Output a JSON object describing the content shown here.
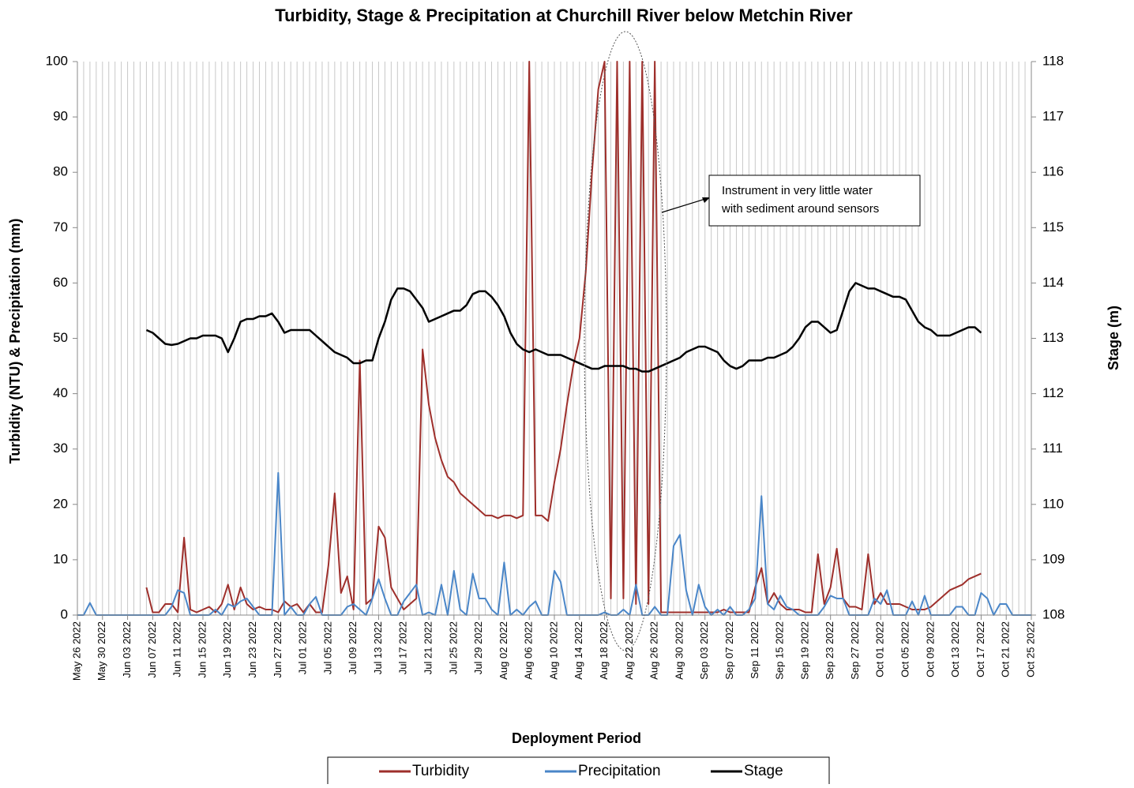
{
  "chart_data": {
    "type": "line",
    "title": "Turbidity, Stage & Precipitation at Churchill River below Metchin River",
    "xlabel": "Deployment Period",
    "ylabel": "Turbidity (NTU) & Precipitation (mm)",
    "y2label": "Stage (m)",
    "annotation": [
      "Instrument in very little water",
      "with sediment around sensors"
    ],
    "legend": "bottom",
    "grid": true,
    "xlim": [
      "2022-05-26",
      "2022-10-25"
    ],
    "ylim": [
      0,
      100
    ],
    "yticks": [
      0,
      10,
      20,
      30,
      40,
      50,
      60,
      70,
      80,
      90,
      100
    ],
    "y2lim": [
      108,
      118
    ],
    "y2ticks": [
      108,
      109,
      110,
      111,
      112,
      113,
      114,
      115,
      116,
      117,
      118
    ],
    "xticks": [
      {
        "value": "2022-05-26",
        "label": "May 26 2022"
      },
      {
        "value": "2022-05-30",
        "label": "May 30 2022"
      },
      {
        "value": "2022-06-03",
        "label": "Jun 03 2022"
      },
      {
        "value": "2022-06-07",
        "label": "Jun 07 2022"
      },
      {
        "value": "2022-06-11",
        "label": "Jun 11 2022"
      },
      {
        "value": "2022-06-15",
        "label": "Jun 15 2022"
      },
      {
        "value": "2022-06-19",
        "label": "Jun 19 2022"
      },
      {
        "value": "2022-06-23",
        "label": "Jun 23 2022"
      },
      {
        "value": "2022-06-27",
        "label": "Jun 27 2022"
      },
      {
        "value": "2022-07-01",
        "label": "Jul 01 2022"
      },
      {
        "value": "2022-07-05",
        "label": "Jul 05 2022"
      },
      {
        "value": "2022-07-09",
        "label": "Jul 09 2022"
      },
      {
        "value": "2022-07-13",
        "label": "Jul 13 2022"
      },
      {
        "value": "2022-07-17",
        "label": "Jul 17 2022"
      },
      {
        "value": "2022-07-21",
        "label": "Jul 21 2022"
      },
      {
        "value": "2022-07-25",
        "label": "Jul 25 2022"
      },
      {
        "value": "2022-07-29",
        "label": "Jul 29 2022"
      },
      {
        "value": "2022-08-02",
        "label": "Aug 02 2022"
      },
      {
        "value": "2022-08-06",
        "label": "Aug 06 2022"
      },
      {
        "value": "2022-08-10",
        "label": "Aug 10 2022"
      },
      {
        "value": "2022-08-14",
        "label": "Aug 14 2022"
      },
      {
        "value": "2022-08-18",
        "label": "Aug 18 2022"
      },
      {
        "value": "2022-08-22",
        "label": "Aug 22 2022"
      },
      {
        "value": "2022-08-26",
        "label": "Aug 26 2022"
      },
      {
        "value": "2022-08-30",
        "label": "Aug 30 2022"
      },
      {
        "value": "2022-09-03",
        "label": "Sep 03 2022"
      },
      {
        "value": "2022-09-07",
        "label": "Sep 07 2022"
      },
      {
        "value": "2022-09-11",
        "label": "Sep 11 2022"
      },
      {
        "value": "2022-09-15",
        "label": "Sep 15 2022"
      },
      {
        "value": "2022-09-19",
        "label": "Sep 19 2022"
      },
      {
        "value": "2022-09-23",
        "label": "Sep 23 2022"
      },
      {
        "value": "2022-09-27",
        "label": "Sep 27 2022"
      },
      {
        "value": "2022-10-01",
        "label": "Oct 01 2022"
      },
      {
        "value": "2022-10-05",
        "label": "Oct 05 2022"
      },
      {
        "value": "2022-10-09",
        "label": "Oct 09 2022"
      },
      {
        "value": "2022-10-13",
        "label": "Oct 13 2022"
      },
      {
        "value": "2022-10-17",
        "label": "Oct 17 2022"
      },
      {
        "value": "2022-10-21",
        "label": "Oct 21 2022"
      },
      {
        "value": "2022-10-25",
        "label": "Oct 25 2022"
      }
    ],
    "x": [
      "2022-05-26",
      "2022-05-27",
      "2022-05-28",
      "2022-05-29",
      "2022-05-30",
      "2022-05-31",
      "2022-06-01",
      "2022-06-02",
      "2022-06-03",
      "2022-06-04",
      "2022-06-05",
      "2022-06-06",
      "2022-06-07",
      "2022-06-08",
      "2022-06-09",
      "2022-06-10",
      "2022-06-11",
      "2022-06-12",
      "2022-06-13",
      "2022-06-14",
      "2022-06-15",
      "2022-06-16",
      "2022-06-17",
      "2022-06-18",
      "2022-06-19",
      "2022-06-20",
      "2022-06-21",
      "2022-06-22",
      "2022-06-23",
      "2022-06-24",
      "2022-06-25",
      "2022-06-26",
      "2022-06-27",
      "2022-06-28",
      "2022-06-29",
      "2022-06-30",
      "2022-07-01",
      "2022-07-02",
      "2022-07-03",
      "2022-07-04",
      "2022-07-05",
      "2022-07-06",
      "2022-07-07",
      "2022-07-08",
      "2022-07-09",
      "2022-07-10",
      "2022-07-11",
      "2022-07-12",
      "2022-07-13",
      "2022-07-14",
      "2022-07-15",
      "2022-07-16",
      "2022-07-17",
      "2022-07-18",
      "2022-07-19",
      "2022-07-20",
      "2022-07-21",
      "2022-07-22",
      "2022-07-23",
      "2022-07-24",
      "2022-07-25",
      "2022-07-26",
      "2022-07-27",
      "2022-07-28",
      "2022-07-29",
      "2022-07-30",
      "2022-07-31",
      "2022-08-01",
      "2022-08-02",
      "2022-08-03",
      "2022-08-04",
      "2022-08-05",
      "2022-08-06",
      "2022-08-07",
      "2022-08-08",
      "2022-08-09",
      "2022-08-10",
      "2022-08-11",
      "2022-08-12",
      "2022-08-13",
      "2022-08-14",
      "2022-08-15",
      "2022-08-16",
      "2022-08-17",
      "2022-08-18",
      "2022-08-19",
      "2022-08-20",
      "2022-08-21",
      "2022-08-22",
      "2022-08-23",
      "2022-08-24",
      "2022-08-25",
      "2022-08-26",
      "2022-08-27",
      "2022-08-28",
      "2022-08-29",
      "2022-08-30",
      "2022-08-31",
      "2022-09-01",
      "2022-09-02",
      "2022-09-03",
      "2022-09-04",
      "2022-09-05",
      "2022-09-06",
      "2022-09-07",
      "2022-09-08",
      "2022-09-09",
      "2022-09-10",
      "2022-09-11",
      "2022-09-12",
      "2022-09-13",
      "2022-09-14",
      "2022-09-15",
      "2022-09-16",
      "2022-09-17",
      "2022-09-18",
      "2022-09-19",
      "2022-09-20",
      "2022-09-21",
      "2022-09-22",
      "2022-09-23",
      "2022-09-24",
      "2022-09-25",
      "2022-09-26",
      "2022-09-27",
      "2022-09-28",
      "2022-09-29",
      "2022-09-30",
      "2022-10-01",
      "2022-10-02",
      "2022-10-03",
      "2022-10-04",
      "2022-10-05",
      "2022-10-06",
      "2022-10-07",
      "2022-10-08",
      "2022-10-09",
      "2022-10-10",
      "2022-10-11",
      "2022-10-12",
      "2022-10-13",
      "2022-10-14",
      "2022-10-15",
      "2022-10-16",
      "2022-10-17",
      "2022-10-18",
      "2022-10-19",
      "2022-10-20",
      "2022-10-21",
      "2022-10-22",
      "2022-10-23",
      "2022-10-24",
      "2022-10-25"
    ],
    "series": [
      {
        "name": "Turbidity",
        "color": "#9e2f2b",
        "values": [
          null,
          null,
          null,
          null,
          null,
          null,
          null,
          null,
          null,
          null,
          null,
          5,
          0.5,
          0.5,
          2,
          2,
          0.5,
          14,
          1,
          0.5,
          1,
          1.5,
          0.5,
          2,
          5.5,
          1,
          5,
          2,
          1,
          1.5,
          1,
          1,
          0.5,
          2.5,
          1.5,
          2,
          0.5,
          2,
          0.5,
          0.5,
          9,
          22,
          4,
          7,
          1,
          46,
          2,
          3,
          16,
          14,
          5,
          3,
          1,
          2,
          3,
          48,
          38,
          32,
          28,
          25,
          24,
          22,
          21,
          20,
          19,
          18,
          18,
          17.5,
          18,
          18,
          17.5,
          18,
          100,
          18,
          18,
          17,
          24,
          30,
          38,
          45,
          50,
          62,
          80,
          95,
          100,
          3,
          100,
          3,
          100,
          2,
          100,
          2,
          100,
          0.5,
          0.5,
          0.5,
          0.5,
          0.5,
          0.5,
          0.5,
          0.5,
          0.5,
          0.5,
          1,
          0.5,
          0.5,
          0.5,
          0.5,
          5,
          8.5,
          2,
          4,
          2,
          1,
          1,
          1,
          0.5,
          0.5,
          11,
          2,
          5,
          12,
          3,
          1.5,
          1.5,
          1,
          11,
          2,
          4,
          2,
          2,
          2,
          1.5,
          1,
          1,
          1,
          1.5,
          2.5,
          3.5,
          4.5,
          5,
          5.5,
          6.5,
          7,
          7.5,
          null,
          null,
          null,
          null,
          null,
          null,
          null,
          null
        ]
      },
      {
        "name": "Precipitation",
        "color": "#4a86c8",
        "values": [
          0,
          0,
          2.2,
          0,
          0,
          0,
          0,
          0,
          0,
          0,
          0,
          0,
          0,
          0,
          0,
          1.5,
          4.5,
          4,
          0,
          0,
          0,
          0,
          1,
          0,
          2,
          1.5,
          2.5,
          3,
          1.5,
          0,
          0,
          0,
          25.7,
          0,
          1.5,
          0,
          0,
          2,
          3.3,
          0,
          0,
          0,
          0,
          1.5,
          2,
          1,
          0,
          3,
          6.5,
          3,
          0,
          0,
          2.5,
          4,
          5.5,
          0,
          0.5,
          0,
          5.5,
          0,
          8,
          1,
          0,
          7.5,
          3,
          3,
          1,
          0,
          9.5,
          0,
          1,
          0,
          1.5,
          2.5,
          0,
          0,
          8,
          6,
          0,
          0,
          0,
          0,
          0,
          0,
          0.5,
          0,
          0,
          1,
          0,
          5.5,
          0,
          0,
          1.5,
          0,
          0,
          12.5,
          14.5,
          4.5,
          0,
          5.5,
          1.5,
          0,
          1,
          0,
          1.5,
          0,
          0,
          1,
          3,
          21.5,
          2,
          1,
          3.5,
          1.5,
          1,
          0,
          0,
          0,
          0,
          1.5,
          3.5,
          3,
          3,
          0,
          0,
          0,
          0,
          3,
          2,
          4.5,
          0,
          0,
          0,
          2.5,
          0,
          3.5,
          0,
          0,
          0,
          0,
          1.5,
          1.5,
          0,
          0,
          4,
          3,
          0,
          2,
          2,
          0,
          0,
          0,
          0
        ]
      },
      {
        "name": "Stage",
        "color": "#000000",
        "axis": "y2",
        "values": [
          null,
          null,
          null,
          null,
          null,
          null,
          null,
          null,
          null,
          null,
          null,
          113.15,
          113.1,
          113.0,
          112.9,
          112.88,
          112.9,
          112.95,
          113.0,
          113.0,
          113.05,
          113.05,
          113.05,
          113.0,
          112.75,
          113.0,
          113.3,
          113.35,
          113.35,
          113.4,
          113.4,
          113.45,
          113.3,
          113.1,
          113.15,
          113.15,
          113.15,
          113.15,
          113.05,
          112.95,
          112.85,
          112.75,
          112.7,
          112.65,
          112.55,
          112.55,
          112.6,
          112.6,
          113.0,
          113.3,
          113.7,
          113.9,
          113.9,
          113.85,
          113.7,
          113.55,
          113.3,
          113.35,
          113.4,
          113.45,
          113.5,
          113.5,
          113.6,
          113.8,
          113.85,
          113.85,
          113.75,
          113.6,
          113.4,
          113.1,
          112.9,
          112.8,
          112.75,
          112.8,
          112.75,
          112.7,
          112.7,
          112.7,
          112.65,
          112.6,
          112.55,
          112.5,
          112.45,
          112.45,
          112.5,
          112.5,
          112.5,
          112.5,
          112.45,
          112.45,
          112.4,
          112.4,
          112.45,
          112.5,
          112.55,
          112.6,
          112.65,
          112.75,
          112.8,
          112.85,
          112.85,
          112.8,
          112.75,
          112.6,
          112.5,
          112.45,
          112.5,
          112.6,
          112.6,
          112.6,
          112.65,
          112.65,
          112.7,
          112.75,
          112.85,
          113.0,
          113.2,
          113.3,
          113.3,
          113.2,
          113.1,
          113.15,
          113.5,
          113.85,
          114.0,
          113.95,
          113.9,
          113.9,
          113.85,
          113.8,
          113.75,
          113.75,
          113.7,
          113.5,
          113.3,
          113.2,
          113.15,
          113.05,
          113.05,
          113.05,
          113.1,
          113.15,
          113.2,
          113.2,
          113.1,
          null,
          null,
          null,
          null,
          null,
          null,
          null,
          null
        ]
      }
    ]
  }
}
